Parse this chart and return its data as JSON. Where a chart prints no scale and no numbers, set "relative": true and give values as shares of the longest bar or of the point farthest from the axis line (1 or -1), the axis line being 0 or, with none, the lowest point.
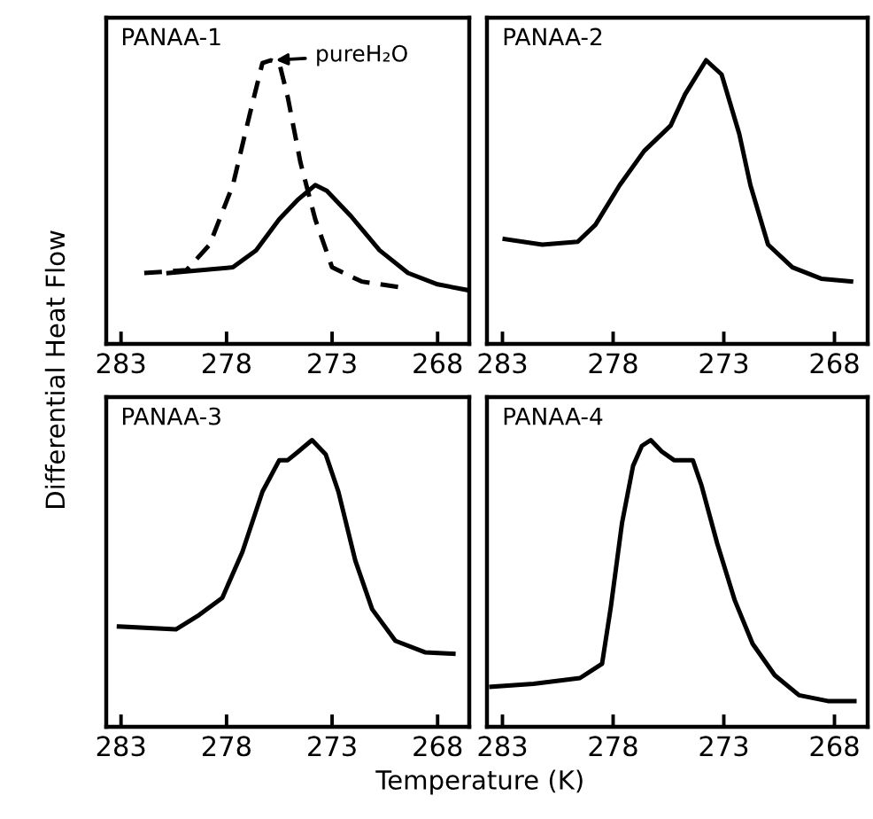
{
  "chart_data": [
    {
      "type": "line",
      "title": "PANAA-1",
      "ylabel": "Differential Heat Flow",
      "relative": true,
      "xlim": [
        283.7,
        266.5
      ],
      "xticks": [
        283,
        278,
        273,
        268
      ],
      "tick_labels": "x",
      "grid": false,
      "legend": "top",
      "marker": "none",
      "series": [
        {
          "name": "pureH₂O",
          "color": "#000000",
          "line_style": "dashed",
          "x": [
            281.9,
            279.9,
            278.8,
            277.7,
            276.9,
            276.3,
            275.9,
            275.5,
            275.1,
            274.5,
            273.8,
            273.0,
            271.6,
            269.8
          ],
          "values": [
            0.25,
            0.26,
            0.35,
            0.56,
            0.81,
            0.99,
            1.0,
            0.99,
            0.87,
            0.64,
            0.44,
            0.27,
            0.22,
            0.2
          ]
        },
        {
          "color": "#000000",
          "line_style": "solid",
          "x": [
            280.75,
            277.7,
            276.6,
            275.5,
            274.6,
            273.8,
            273.25,
            272.1,
            270.75,
            269.4,
            268.0,
            266.6
          ],
          "values": [
            0.25,
            0.27,
            0.33,
            0.44,
            0.51,
            0.56,
            0.54,
            0.45,
            0.33,
            0.25,
            0.21,
            0.19
          ]
        }
      ]
    },
    {
      "type": "line",
      "title": "PANAA-2",
      "relative": true,
      "xlim": [
        283.7,
        266.5
      ],
      "xticks": [
        283,
        278,
        273,
        268
      ],
      "tick_labels": "x",
      "grid": false,
      "marker": "none",
      "series": [
        {
          "color": "#000000",
          "line_style": "solid",
          "x": [
            282.9,
            281.2,
            279.6,
            278.8,
            277.7,
            276.6,
            275.4,
            274.75,
            273.8,
            273.1,
            272.3,
            271.8,
            271.0,
            269.9,
            268.6,
            267.25
          ],
          "values": [
            0.37,
            0.35,
            0.36,
            0.42,
            0.56,
            0.68,
            0.77,
            0.88,
            1.0,
            0.95,
            0.74,
            0.56,
            0.35,
            0.27,
            0.23,
            0.22
          ]
        }
      ]
    },
    {
      "type": "line",
      "title": "PANAA-3",
      "xlabel": "Temperature (K)",
      "relative": true,
      "xlim": [
        283.7,
        266.5
      ],
      "xticks": [
        283,
        278,
        273,
        268
      ],
      "tick_labels": "x",
      "grid": false,
      "marker": "none",
      "series": [
        {
          "color": "#000000",
          "line_style": "solid",
          "x": [
            283.1,
            280.4,
            279.3,
            278.2,
            277.25,
            276.3,
            275.5,
            275.1,
            274.6,
            273.95,
            273.3,
            272.7,
            271.9,
            271.1,
            270.0,
            268.6,
            267.25
          ],
          "values": [
            0.35,
            0.34,
            0.39,
            0.45,
            0.61,
            0.82,
            0.93,
            0.93,
            0.96,
            1.0,
            0.95,
            0.82,
            0.58,
            0.41,
            0.3,
            0.26,
            0.255
          ]
        }
      ]
    },
    {
      "type": "line",
      "title": "PANAA-4",
      "relative": true,
      "xlim": [
        283.7,
        266.5
      ],
      "xticks": [
        283,
        278,
        273,
        268
      ],
      "tick_labels": "x",
      "grid": false,
      "marker": "none",
      "series": [
        {
          "color": "#000000",
          "line_style": "solid",
          "x": [
            283.5,
            281.6,
            279.5,
            278.5,
            278.1,
            277.6,
            277.1,
            276.7,
            276.3,
            275.8,
            275.25,
            274.4,
            274.0,
            273.3,
            272.5,
            271.7,
            270.7,
            269.6,
            268.3,
            267.1
          ],
          "values": [
            0.14,
            0.15,
            0.17,
            0.22,
            0.42,
            0.71,
            0.91,
            0.98,
            1.0,
            0.96,
            0.93,
            0.93,
            0.84,
            0.64,
            0.44,
            0.29,
            0.18,
            0.11,
            0.09,
            0.09
          ]
        }
      ]
    }
  ]
}
